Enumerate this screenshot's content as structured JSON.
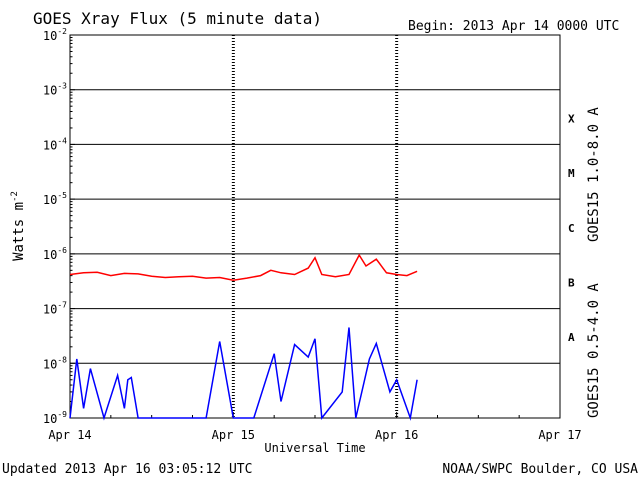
{
  "header": {
    "title": "GOES Xray Flux (5 minute data)",
    "begin": "Begin:  2013 Apr 14 0000 UTC"
  },
  "footer": {
    "updated": "Updated 2013 Apr 16 03:05:12 UTC",
    "credit": "NOAA/SWPC Boulder, CO USA"
  },
  "chart_data": {
    "type": "line",
    "title": "GOES Xray Flux (5 minute data)",
    "xlabel": "Universal Time",
    "ylabel": "Watts m",
    "ylabel_sup": "-2",
    "ylim": [
      1e-09,
      0.01
    ],
    "y_scale": "log",
    "y_ticks": [
      {
        "v": 0.01,
        "base": "10",
        "exp": "-2"
      },
      {
        "v": 0.001,
        "base": "10",
        "exp": "-3"
      },
      {
        "v": 0.0001,
        "base": "10",
        "exp": "-4"
      },
      {
        "v": 1e-05,
        "base": "10",
        "exp": "-5"
      },
      {
        "v": 1e-06,
        "base": "10",
        "exp": "-6"
      },
      {
        "v": 1e-07,
        "base": "10",
        "exp": "-7"
      },
      {
        "v": 1e-08,
        "base": "10",
        "exp": "-8"
      },
      {
        "v": 1e-09,
        "base": "10",
        "exp": "-9"
      }
    ],
    "xlim": [
      "2013-04-14T00:00",
      "2013-04-17T00:00"
    ],
    "x_ticks": [
      "Apr 14",
      "Apr 15",
      "Apr 16",
      "Apr 17"
    ],
    "flare_classes": [
      {
        "label": "X",
        "v": 0.0003
      },
      {
        "label": "M",
        "v": 3e-05
      },
      {
        "label": "C",
        "v": 3e-06
      },
      {
        "label": "B",
        "v": 3e-07
      },
      {
        "label": "A",
        "v": 3e-08
      }
    ],
    "grid": true,
    "series": [
      {
        "name": "GOES15 1.0-8.0 A",
        "color": "#ff0000",
        "x": [
          "2013-04-14T00:00",
          "2013-04-14T02:00",
          "2013-04-14T04:00",
          "2013-04-14T06:00",
          "2013-04-14T08:00",
          "2013-04-14T10:00",
          "2013-04-14T12:00",
          "2013-04-14T14:00",
          "2013-04-14T16:00",
          "2013-04-14T18:00",
          "2013-04-14T20:00",
          "2013-04-14T22:00",
          "2013-04-15T00:00",
          "2013-04-15T02:00",
          "2013-04-15T04:00",
          "2013-04-15T05:30",
          "2013-04-15T07:00",
          "2013-04-15T09:00",
          "2013-04-15T11:00",
          "2013-04-15T12:00",
          "2013-04-15T13:00",
          "2013-04-15T15:00",
          "2013-04-15T17:00",
          "2013-04-15T18:30",
          "2013-04-15T19:30",
          "2013-04-15T21:00",
          "2013-04-15T22:30",
          "2013-04-16T00:00",
          "2013-04-16T01:30",
          "2013-04-16T03:00"
        ],
        "values": [
          4.2e-07,
          4.5e-07,
          4.6e-07,
          4e-07,
          4.4e-07,
          4.3e-07,
          3.9e-07,
          3.7e-07,
          3.8e-07,
          3.9e-07,
          3.6e-07,
          3.7e-07,
          3.3e-07,
          3.6e-07,
          4e-07,
          5e-07,
          4.5e-07,
          4.2e-07,
          5.5e-07,
          8.5e-07,
          4.2e-07,
          3.8e-07,
          4.2e-07,
          9.5e-07,
          6e-07,
          8e-07,
          4.5e-07,
          4.2e-07,
          4e-07,
          4.8e-07
        ]
      },
      {
        "name": "GOES15 0.5-4.0 A",
        "color": "#0000ff",
        "x": [
          "2013-04-14T00:00",
          "2013-04-14T01:00",
          "2013-04-14T02:00",
          "2013-04-14T03:00",
          "2013-04-14T05:00",
          "2013-04-14T07:00",
          "2013-04-14T08:00",
          "2013-04-14T08:30",
          "2013-04-14T09:00",
          "2013-04-14T10:00",
          "2013-04-14T12:00",
          "2013-04-14T16:00",
          "2013-04-14T20:00",
          "2013-04-14T22:00",
          "2013-04-15T00:00",
          "2013-04-15T02:00",
          "2013-04-15T03:00",
          "2013-04-15T06:00",
          "2013-04-15T07:00",
          "2013-04-15T09:00",
          "2013-04-15T11:00",
          "2013-04-15T12:00",
          "2013-04-15T13:00",
          "2013-04-15T16:00",
          "2013-04-15T17:00",
          "2013-04-15T18:00",
          "2013-04-15T20:00",
          "2013-04-15T21:00",
          "2013-04-15T23:00",
          "2013-04-16T00:00",
          "2013-04-16T02:00",
          "2013-04-16T03:00"
        ],
        "values": [
          1e-09,
          1.2e-08,
          1.5e-09,
          8e-09,
          1e-09,
          6e-09,
          1.5e-09,
          5e-09,
          5.5e-09,
          1e-09,
          1e-09,
          1e-09,
          1e-09,
          2.5e-08,
          1e-09,
          1e-09,
          1e-09,
          1.5e-08,
          2e-09,
          2.2e-08,
          1.3e-08,
          2.8e-08,
          1e-09,
          3e-09,
          4.5e-08,
          1e-09,
          1.2e-08,
          2.3e-08,
          3e-09,
          5e-09,
          1e-09,
          5e-09
        ]
      }
    ]
  }
}
